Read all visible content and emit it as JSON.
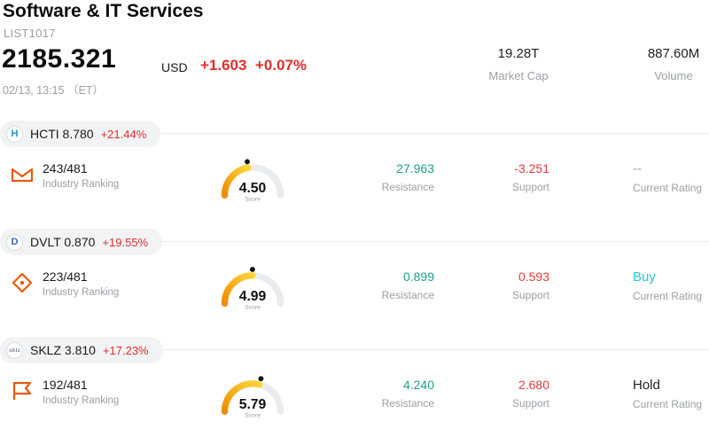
{
  "header": {
    "title": "Software & IT Services",
    "list_id": "LIST1017",
    "price": "2185.321",
    "currency": "USD",
    "change": "+1.603  +0.07%",
    "timestamp": "02/13, 13:15 （ET）",
    "market_cap": {
      "value": "19.28T",
      "label": "Market Cap"
    },
    "volume": {
      "value": "887.60M",
      "label": "Volume"
    }
  },
  "labels": {
    "ranking": "Industry Ranking",
    "score": "Score",
    "resistance": "Resistance",
    "support": "Support",
    "rating": "Current Rating"
  },
  "colors": {
    "change_red": "#e12d2d",
    "resistance_teal": "#1f9e8e",
    "support_red": "#e23b3b",
    "gauge_start": "#f08c00",
    "gauge_end": "#ffd43b"
  },
  "stocks": [
    {
      "ticker": "HCTI 8.780",
      "change": "+21.44%",
      "badge": {
        "text": "H",
        "color": "#2494b8"
      },
      "ranking": "243/481",
      "score": "4.50",
      "score_value": 4.5,
      "resistance": "27.963",
      "support": "-3.251",
      "rating": "--",
      "rating_color": "#9aa0a6"
    },
    {
      "ticker": "DVLT 0.870",
      "change": "+19.55%",
      "badge": {
        "text": "D",
        "color": "#3566c4"
      },
      "ranking": "223/481",
      "score": "4.99",
      "score_value": 4.99,
      "resistance": "0.899",
      "support": "0.593",
      "rating": "Buy",
      "rating_color": "#2bc4cf"
    },
    {
      "ticker": "SKLZ 3.810",
      "change": "+17.23%",
      "badge": {
        "text": "sklz",
        "color": "#7d8691"
      },
      "ranking": "192/481",
      "score": "5.79",
      "score_value": 5.79,
      "resistance": "4.240",
      "support": "2.680",
      "rating": "Hold",
      "rating_color": "#202124"
    }
  ]
}
